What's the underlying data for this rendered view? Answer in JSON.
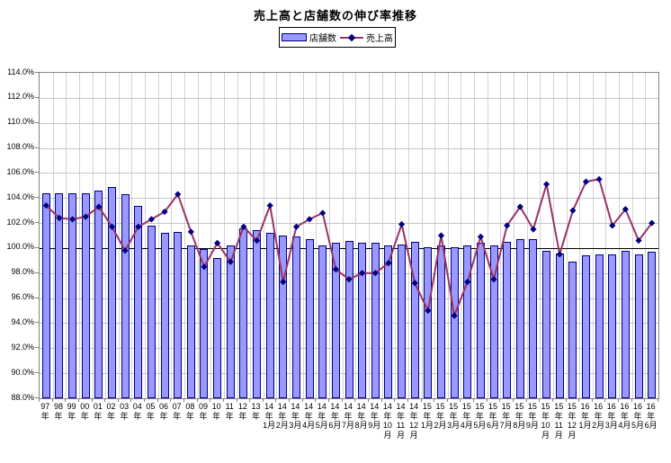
{
  "title": "売上高と店舗数の伸び率推移",
  "legend": {
    "items": [
      {
        "label": "店舗数",
        "type": "bar"
      },
      {
        "label": "売上高",
        "type": "line"
      }
    ]
  },
  "colors": {
    "bar_fill": "#9999FF",
    "bar_border": "#000080",
    "line": "#993366",
    "marker": "#000080",
    "gridline": "#c6c6c6",
    "zero_line": "#000000",
    "plot_border": "#848484"
  },
  "yticks": [
    "114.0%",
    "112.0%",
    "110.0%",
    "108.0%",
    "106.0%",
    "104.0%",
    "102.0%",
    "100.0%",
    "98.0%",
    "96.0%",
    "94.0%",
    "92.0%",
    "90.0%",
    "88.0%"
  ],
  "chart_data": {
    "type": "bar",
    "title": "売上高と店舗数の伸び率推移",
    "xlabel": "",
    "ylabel": "",
    "ylim": [
      88,
      114
    ],
    "ytick_step": 2,
    "ytick_format": "0.0%",
    "grid": true,
    "legend_position": "top",
    "baseline": 100,
    "categories": [
      "97年",
      "98年",
      "99年",
      "00年",
      "01年",
      "02年",
      "03年",
      "04年",
      "05年",
      "06年",
      "07年",
      "08年",
      "09年",
      "10年",
      "11年",
      "12年",
      "13年",
      "14年1月",
      "14年2月",
      "14年3月",
      "14年4月",
      "14年5月",
      "14年6月",
      "14年7月",
      "14年8月",
      "14年9月",
      "14年10月",
      "14年11月",
      "14年12月",
      "15年1月",
      "15年2月",
      "15年3月",
      "15年4月",
      "15年5月",
      "15年6月",
      "15年7月",
      "15年8月",
      "15年9月",
      "15年10月",
      "15年11月",
      "15年12月",
      "16年1月",
      "16年2月",
      "16年3月",
      "16年4月",
      "16年5月",
      "16年6月"
    ],
    "series": [
      {
        "name": "店舗数",
        "type": "bar",
        "values": [
          104.4,
          104.4,
          104.4,
          104.4,
          104.6,
          104.9,
          104.3,
          103.4,
          101.8,
          101.2,
          101.3,
          100.2,
          99.9,
          99.2,
          100.2,
          101.6,
          101.4,
          101.2,
          101.0,
          100.9,
          100.7,
          100.2,
          100.4,
          100.6,
          100.4,
          100.4,
          100.2,
          100.3,
          100.5,
          100.1,
          100.2,
          100.1,
          100.2,
          100.4,
          100.2,
          100.5,
          100.7,
          100.7,
          99.8,
          99.6,
          98.9,
          99.4,
          99.5,
          99.5,
          99.8,
          99.5,
          99.7
        ]
      },
      {
        "name": "売上高",
        "type": "line",
        "values": [
          103.4,
          102.4,
          102.3,
          102.5,
          103.3,
          101.7,
          99.8,
          101.7,
          102.3,
          102.9,
          104.3,
          101.3,
          98.5,
          100.4,
          98.9,
          101.7,
          100.6,
          103.4,
          97.3,
          101.7,
          102.3,
          102.8,
          98.3,
          97.5,
          98.0,
          98.0,
          98.8,
          101.9,
          97.2,
          95.0,
          101.0,
          94.6,
          97.3,
          100.9,
          97.5,
          101.8,
          103.3,
          101.5,
          105.1,
          99.5,
          103.0,
          105.3,
          105.5,
          101.8,
          103.1,
          100.6,
          102.0
        ]
      }
    ]
  }
}
